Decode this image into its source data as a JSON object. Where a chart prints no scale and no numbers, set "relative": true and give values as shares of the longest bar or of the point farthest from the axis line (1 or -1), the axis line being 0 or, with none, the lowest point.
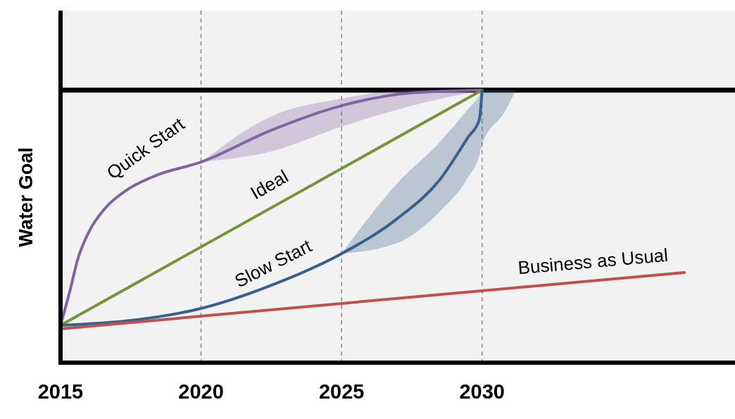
{
  "chart_data": {
    "type": "line",
    "relative": true,
    "ylabel": "Water Goal",
    "xlim": [
      2015,
      2039
    ],
    "xticks": [
      2015,
      2020,
      2025,
      2030
    ],
    "grid": "x",
    "line_style": "solid",
    "ref_lines": [
      {
        "axis": "y",
        "value": 1,
        "color": "#000000"
      }
    ],
    "series": [
      {
        "name": "Quick Start",
        "color": "#8064a2",
        "x": [
          2015,
          2015.35,
          2015.6,
          2016,
          2016.6,
          2017.35,
          2018.35,
          2020,
          2022.5,
          2025,
          2027.5,
          2030
        ],
        "values": [
          0.137,
          0.27,
          0.375,
          0.478,
          0.568,
          0.633,
          0.685,
          0.736,
          0.853,
          0.943,
          0.99,
          1
        ],
        "lower": [
          null,
          null,
          null,
          null,
          null,
          null,
          null,
          0.736,
          0.775,
          0.866,
          0.943,
          1
        ],
        "upper": [
          null,
          null,
          null,
          null,
          null,
          null,
          null,
          0.736,
          0.904,
          0.969,
          1,
          1
        ]
      },
      {
        "name": "Ideal",
        "color": "#77933c",
        "x": [
          2015,
          2030
        ],
        "values": [
          0.137,
          1
        ]
      },
      {
        "name": "Slow Start",
        "color": "#3a5f8c",
        "x": [
          2015,
          2017.5,
          2020,
          2022.5,
          2025,
          2027,
          2028.5,
          2029.5,
          2029.9,
          2030,
          2030.8,
          2031.2
        ],
        "values": [
          0.137,
          0.155,
          0.199,
          0.284,
          0.4,
          0.53,
          0.672,
          0.827,
          0.891,
          1,
          null,
          null
        ],
        "lower": [
          null,
          null,
          null,
          null,
          0.4,
          0.44,
          0.555,
          0.68,
          0.76,
          0.8,
          0.92,
          1
        ],
        "upper": [
          null,
          null,
          null,
          null,
          0.4,
          0.66,
          0.81,
          0.93,
          0.98,
          1,
          1,
          1
        ]
      },
      {
        "name": "Business as Usual",
        "color": "#c0504d",
        "x": [
          2015,
          2037.2
        ],
        "values": [
          0.124,
          0.331
        ]
      }
    ]
  }
}
